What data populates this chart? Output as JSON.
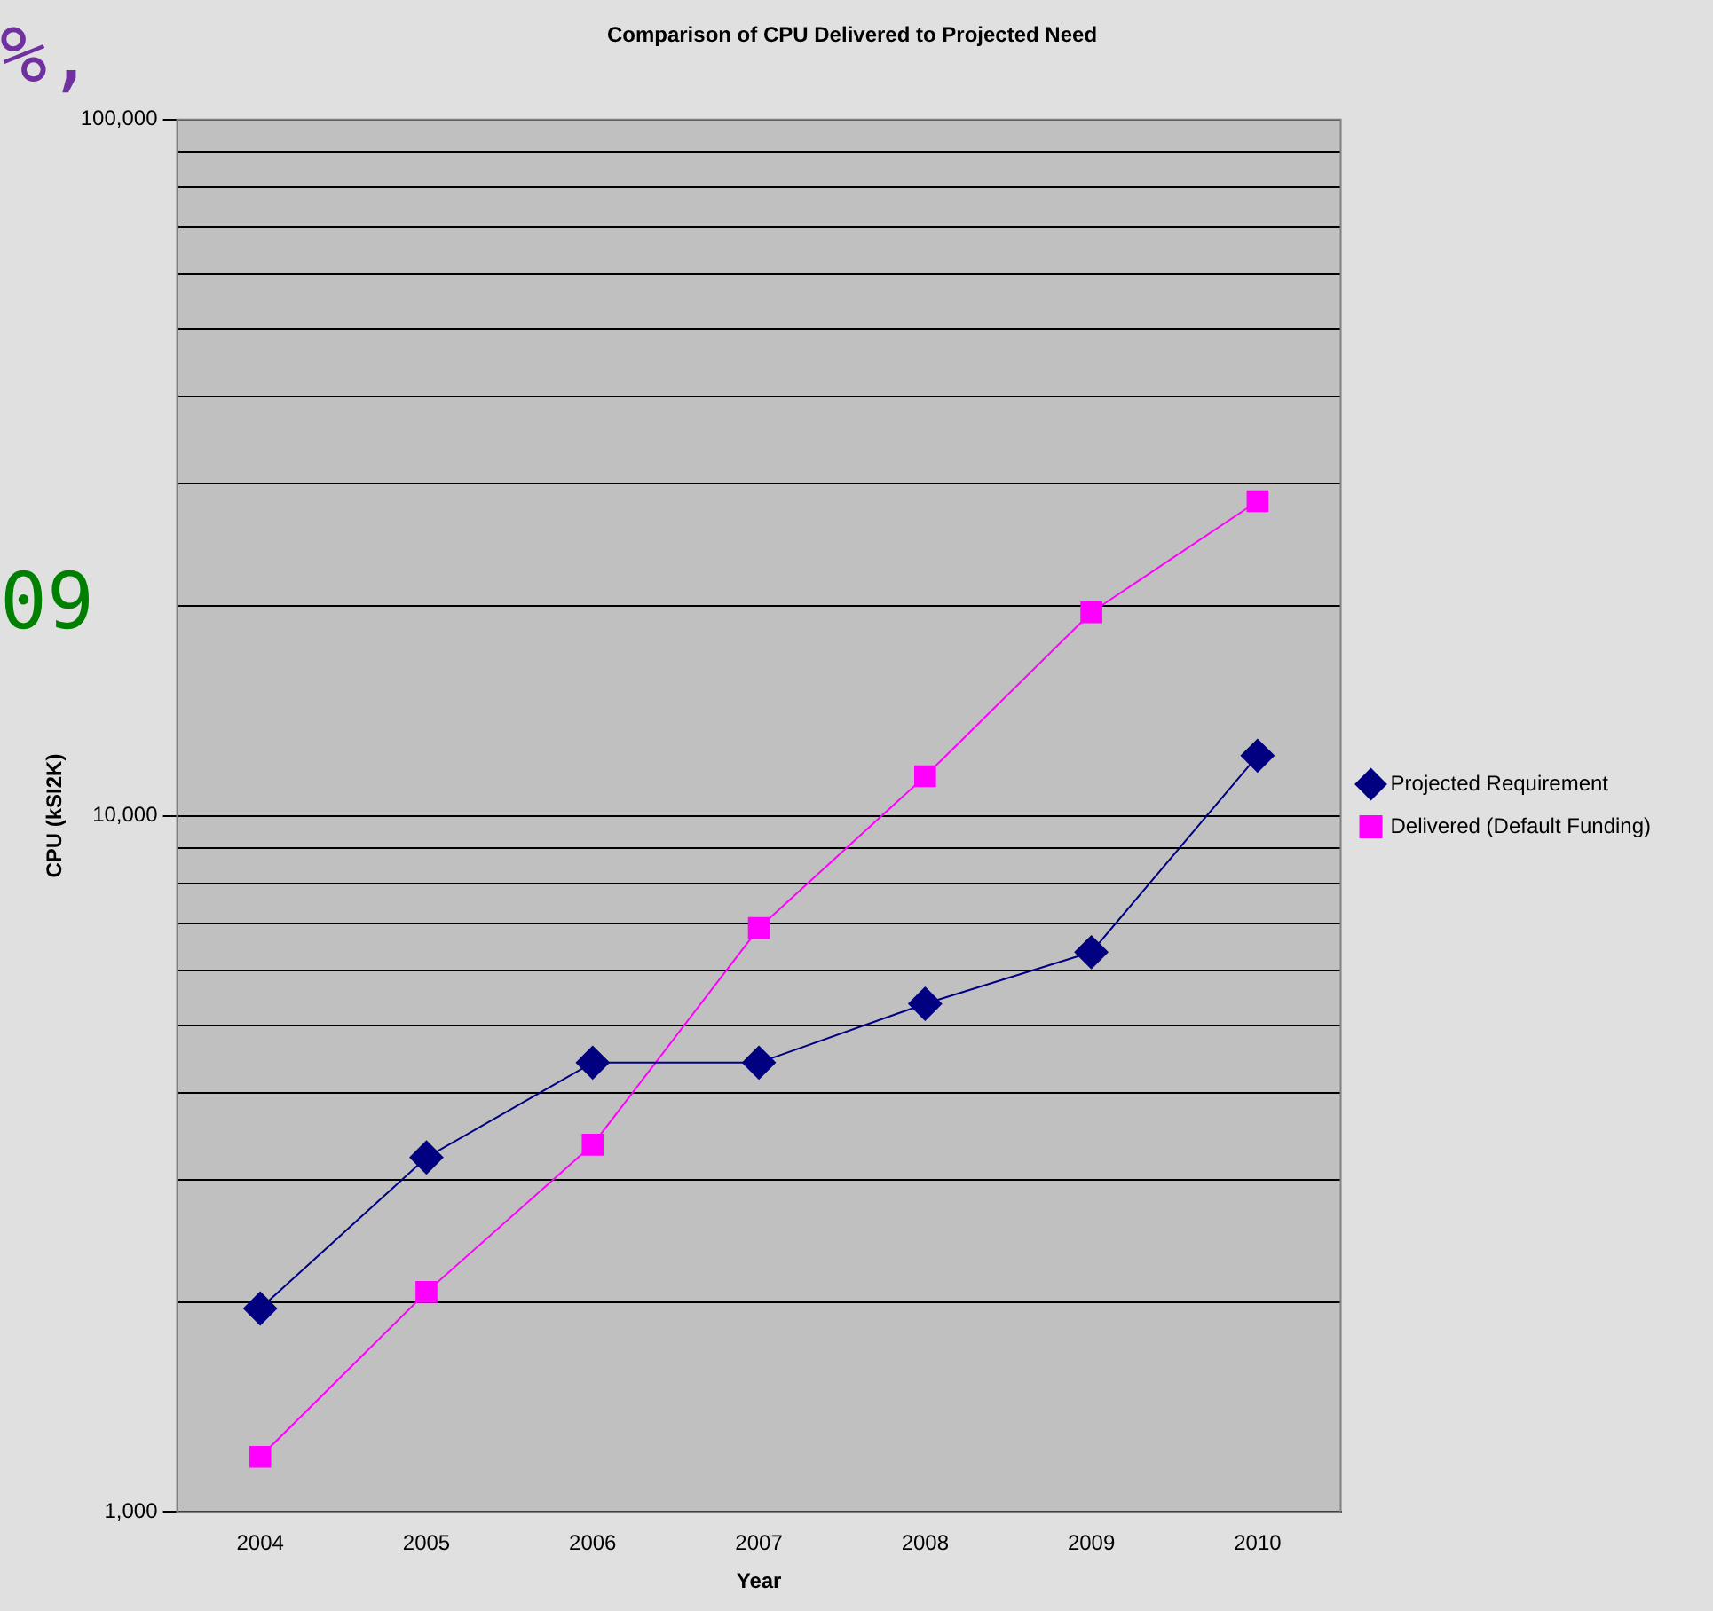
{
  "chart_data": {
    "type": "line",
    "title": "Comparison of CPU Delivered to Projected Need",
    "xlabel": "Year",
    "ylabel": "CPU (kSI2K)",
    "categories": [
      "2004",
      "2005",
      "2006",
      "2007",
      "2008",
      "2009",
      "2010"
    ],
    "series": [
      {
        "name": "Projected Requirement",
        "color": "#000080",
        "marker": "diamond",
        "values": [
          1960,
          3230,
          4420,
          4420,
          5370,
          6370,
          12200
        ]
      },
      {
        "name": "Delivered (Default Funding)",
        "color": "#ff00ff",
        "marker": "square",
        "values": [
          1200,
          2070,
          3370,
          6900,
          11400,
          19600,
          28300
        ]
      }
    ],
    "log": "y",
    "ylim": [
      1000,
      100000
    ],
    "yticks": [
      {
        "value": 1000,
        "label": "1,000"
      },
      {
        "value": 2000,
        "label": null
      },
      {
        "value": 3000,
        "label": null
      },
      {
        "value": 4000,
        "label": null
      },
      {
        "value": 5000,
        "label": null
      },
      {
        "value": 6000,
        "label": null
      },
      {
        "value": 7000,
        "label": null
      },
      {
        "value": 8000,
        "label": null
      },
      {
        "value": 9000,
        "label": null
      },
      {
        "value": 10000,
        "label": "10,000"
      },
      {
        "value": 20000,
        "label": null
      },
      {
        "value": 30000,
        "label": null
      },
      {
        "value": 40000,
        "label": null
      },
      {
        "value": 50000,
        "label": null
      },
      {
        "value": 60000,
        "label": null
      },
      {
        "value": 70000,
        "label": null
      },
      {
        "value": 80000,
        "label": null
      },
      {
        "value": 90000,
        "label": null
      },
      {
        "value": 100000,
        "label": "100,000"
      }
    ],
    "grid": "y",
    "legend": "right",
    "line_style": "solid",
    "annotations": [
      "%,",
      "09"
    ]
  }
}
